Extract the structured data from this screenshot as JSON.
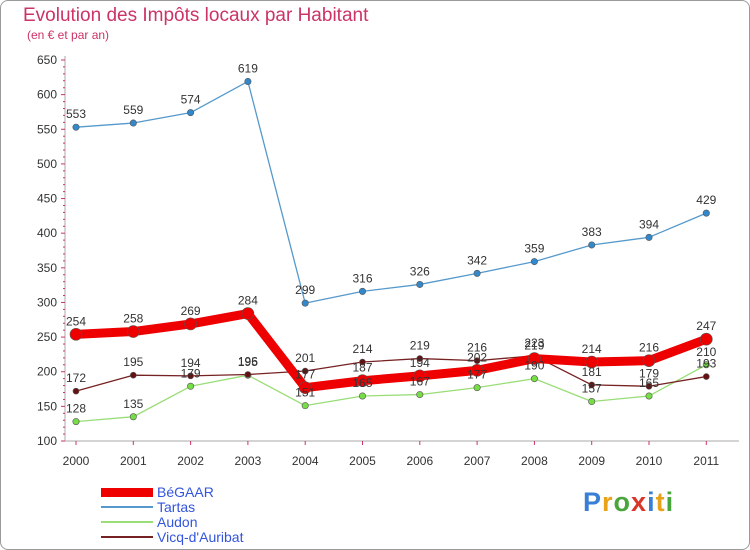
{
  "header": {
    "title": "Evolution des Impôts locaux par Habitant",
    "subtitle": "(en € et par an)"
  },
  "logo": {
    "text": "Proxiti",
    "letters": [
      "P",
      "r",
      "o",
      "x",
      "i",
      "t",
      "i"
    ],
    "colors": [
      "#3a7fd5",
      "#e9a31b",
      "#4aa63c",
      "#d9362b",
      "#3a7fd5",
      "#e9a31b",
      "#4aa63c"
    ]
  },
  "chart_data": {
    "type": "line",
    "title": "Evolution des Impôts locaux par Habitant",
    "subtitle": "(en € et par an)",
    "xlabel": "",
    "ylabel": "",
    "ylim": [
      100,
      650
    ],
    "yticks": [
      100,
      150,
      200,
      250,
      300,
      350,
      400,
      450,
      500,
      550,
      600,
      650
    ],
    "grid": false,
    "legend_position": "bottom-left",
    "x": [
      "2000",
      "2001",
      "2002",
      "2003",
      "2004",
      "2005",
      "2006",
      "2007",
      "2008",
      "2009",
      "2010",
      "2011"
    ],
    "series": [
      {
        "name": "Tartas",
        "color": "#5599cc",
        "point_color": "#3388cc",
        "values": [
          553,
          559,
          574,
          619,
          299,
          316,
          326,
          342,
          359,
          383,
          394,
          429
        ]
      },
      {
        "name": "Audon",
        "color": "#99dd77",
        "point_color": "#77dd44",
        "values": [
          128,
          135,
          179,
          195,
          151,
          165,
          167,
          177,
          190,
          157,
          165,
          210
        ]
      },
      {
        "name": "Vicq-d'Auribat",
        "color": "#772222",
        "point_color": "#661111",
        "values": [
          172,
          195,
          194,
          196,
          201,
          214,
          219,
          216,
          223,
          181,
          179,
          193
        ]
      },
      {
        "name": "BéGAAR",
        "color": "#ee0000",
        "point_color": "#ee0000",
        "values": [
          254,
          258,
          269,
          284,
          177,
          187,
          194,
          202,
          219,
          214,
          216,
          247
        ]
      }
    ],
    "legend_order": [
      "BéGAAR",
      "Tartas",
      "Audon",
      "Vicq-d'Auribat"
    ]
  }
}
